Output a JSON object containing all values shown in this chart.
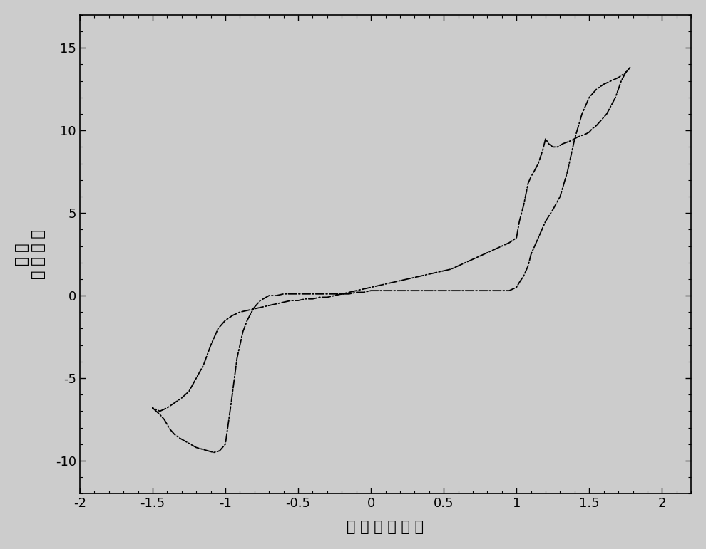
{
  "xlim": [
    -2.0,
    2.2
  ],
  "ylim": [
    -12,
    17
  ],
  "xticks": [
    -2.0,
    -1.5,
    -1.0,
    -0.5,
    0.0,
    0.5,
    1.0,
    1.5,
    2.0
  ],
  "yticks": [
    -10,
    -5,
    0,
    5,
    10,
    15
  ],
  "line_color": "#000000",
  "background_color": "#cccccc",
  "fwd_x": [
    -1.5,
    -1.45,
    -1.42,
    -1.4,
    -1.38,
    -1.35,
    -1.32,
    -1.28,
    -1.24,
    -1.2,
    -1.16,
    -1.12,
    -1.08,
    -1.04,
    -1.0,
    -0.96,
    -0.92,
    -0.88,
    -0.85,
    -0.82,
    -0.8,
    -0.78,
    -0.76,
    -0.74,
    -0.72,
    -0.7,
    -0.65,
    -0.6,
    -0.55,
    -0.5,
    -0.45,
    -0.4,
    -0.35,
    -0.3,
    -0.25,
    -0.2,
    -0.15,
    -0.1,
    -0.05,
    0.0,
    0.05,
    0.1,
    0.15,
    0.2,
    0.25,
    0.3,
    0.35,
    0.4,
    0.45,
    0.5,
    0.55,
    0.6,
    0.65,
    0.7,
    0.75,
    0.8,
    0.85,
    0.9,
    0.95,
    1.0,
    1.02,
    1.05,
    1.08,
    1.1,
    1.15,
    1.2,
    1.25,
    1.3,
    1.35,
    1.4,
    1.45,
    1.5,
    1.55,
    1.6,
    1.65,
    1.7,
    1.75,
    1.78
  ],
  "fwd_y": [
    -6.8,
    -7.2,
    -7.5,
    -7.8,
    -8.1,
    -8.4,
    -8.6,
    -8.8,
    -9.0,
    -9.2,
    -9.3,
    -9.4,
    -9.5,
    -9.4,
    -9.0,
    -6.5,
    -3.8,
    -2.2,
    -1.5,
    -1.0,
    -0.7,
    -0.5,
    -0.3,
    -0.2,
    -0.1,
    0.0,
    0.0,
    0.1,
    0.1,
    0.1,
    0.1,
    0.1,
    0.1,
    0.1,
    0.1,
    0.1,
    0.1,
    0.2,
    0.2,
    0.3,
    0.3,
    0.3,
    0.3,
    0.3,
    0.3,
    0.3,
    0.3,
    0.3,
    0.3,
    0.3,
    0.3,
    0.3,
    0.3,
    0.3,
    0.3,
    0.3,
    0.3,
    0.3,
    0.3,
    0.5,
    0.8,
    1.2,
    1.8,
    2.5,
    3.5,
    4.5,
    5.2,
    6.0,
    7.5,
    9.5,
    11.0,
    12.0,
    12.5,
    12.8,
    13.0,
    13.2,
    13.5,
    13.8
  ],
  "rev_x": [
    1.78,
    1.75,
    1.72,
    1.7,
    1.68,
    1.65,
    1.62,
    1.6,
    1.58,
    1.55,
    1.52,
    1.5,
    1.48,
    1.45,
    1.42,
    1.4,
    1.38,
    1.35,
    1.32,
    1.3,
    1.28,
    1.25,
    1.22,
    1.2,
    1.18,
    1.15,
    1.12,
    1.1,
    1.08,
    1.05,
    1.02,
    1.0,
    0.95,
    0.9,
    0.85,
    0.8,
    0.75,
    0.7,
    0.65,
    0.6,
    0.55,
    0.5,
    0.45,
    0.4,
    0.35,
    0.3,
    0.25,
    0.2,
    0.15,
    0.1,
    0.05,
    0.0,
    -0.05,
    -0.1,
    -0.15,
    -0.2,
    -0.25,
    -0.3,
    -0.35,
    -0.4,
    -0.45,
    -0.5,
    -0.55,
    -0.6,
    -0.65,
    -0.7,
    -0.75,
    -0.8,
    -0.85,
    -0.9,
    -0.95,
    -1.0,
    -1.05,
    -1.1,
    -1.15,
    -1.2,
    -1.25,
    -1.3,
    -1.35,
    -1.4,
    -1.45,
    -1.5
  ],
  "rev_y": [
    13.8,
    13.5,
    13.0,
    12.5,
    12.0,
    11.5,
    11.0,
    10.8,
    10.6,
    10.3,
    10.1,
    9.9,
    9.8,
    9.7,
    9.6,
    9.5,
    9.4,
    9.3,
    9.2,
    9.1,
    9.0,
    9.0,
    9.2,
    9.5,
    8.8,
    8.0,
    7.5,
    7.2,
    6.8,
    5.5,
    4.5,
    3.5,
    3.2,
    3.0,
    2.8,
    2.6,
    2.4,
    2.2,
    2.0,
    1.8,
    1.6,
    1.5,
    1.4,
    1.3,
    1.2,
    1.1,
    1.0,
    0.9,
    0.8,
    0.7,
    0.6,
    0.5,
    0.4,
    0.3,
    0.2,
    0.1,
    0.0,
    -0.1,
    -0.1,
    -0.2,
    -0.2,
    -0.3,
    -0.3,
    -0.4,
    -0.5,
    -0.6,
    -0.7,
    -0.8,
    -0.9,
    -1.0,
    -1.2,
    -1.5,
    -2.0,
    -3.0,
    -4.2,
    -5.0,
    -5.8,
    -6.2,
    -6.5,
    -6.8,
    -7.0,
    -6.8
  ],
  "xlabel": "电 位 （ 伏 特 ）",
  "ylabel_line1": "电 流",
  "ylabel_line2": "（ 微 安 ）"
}
